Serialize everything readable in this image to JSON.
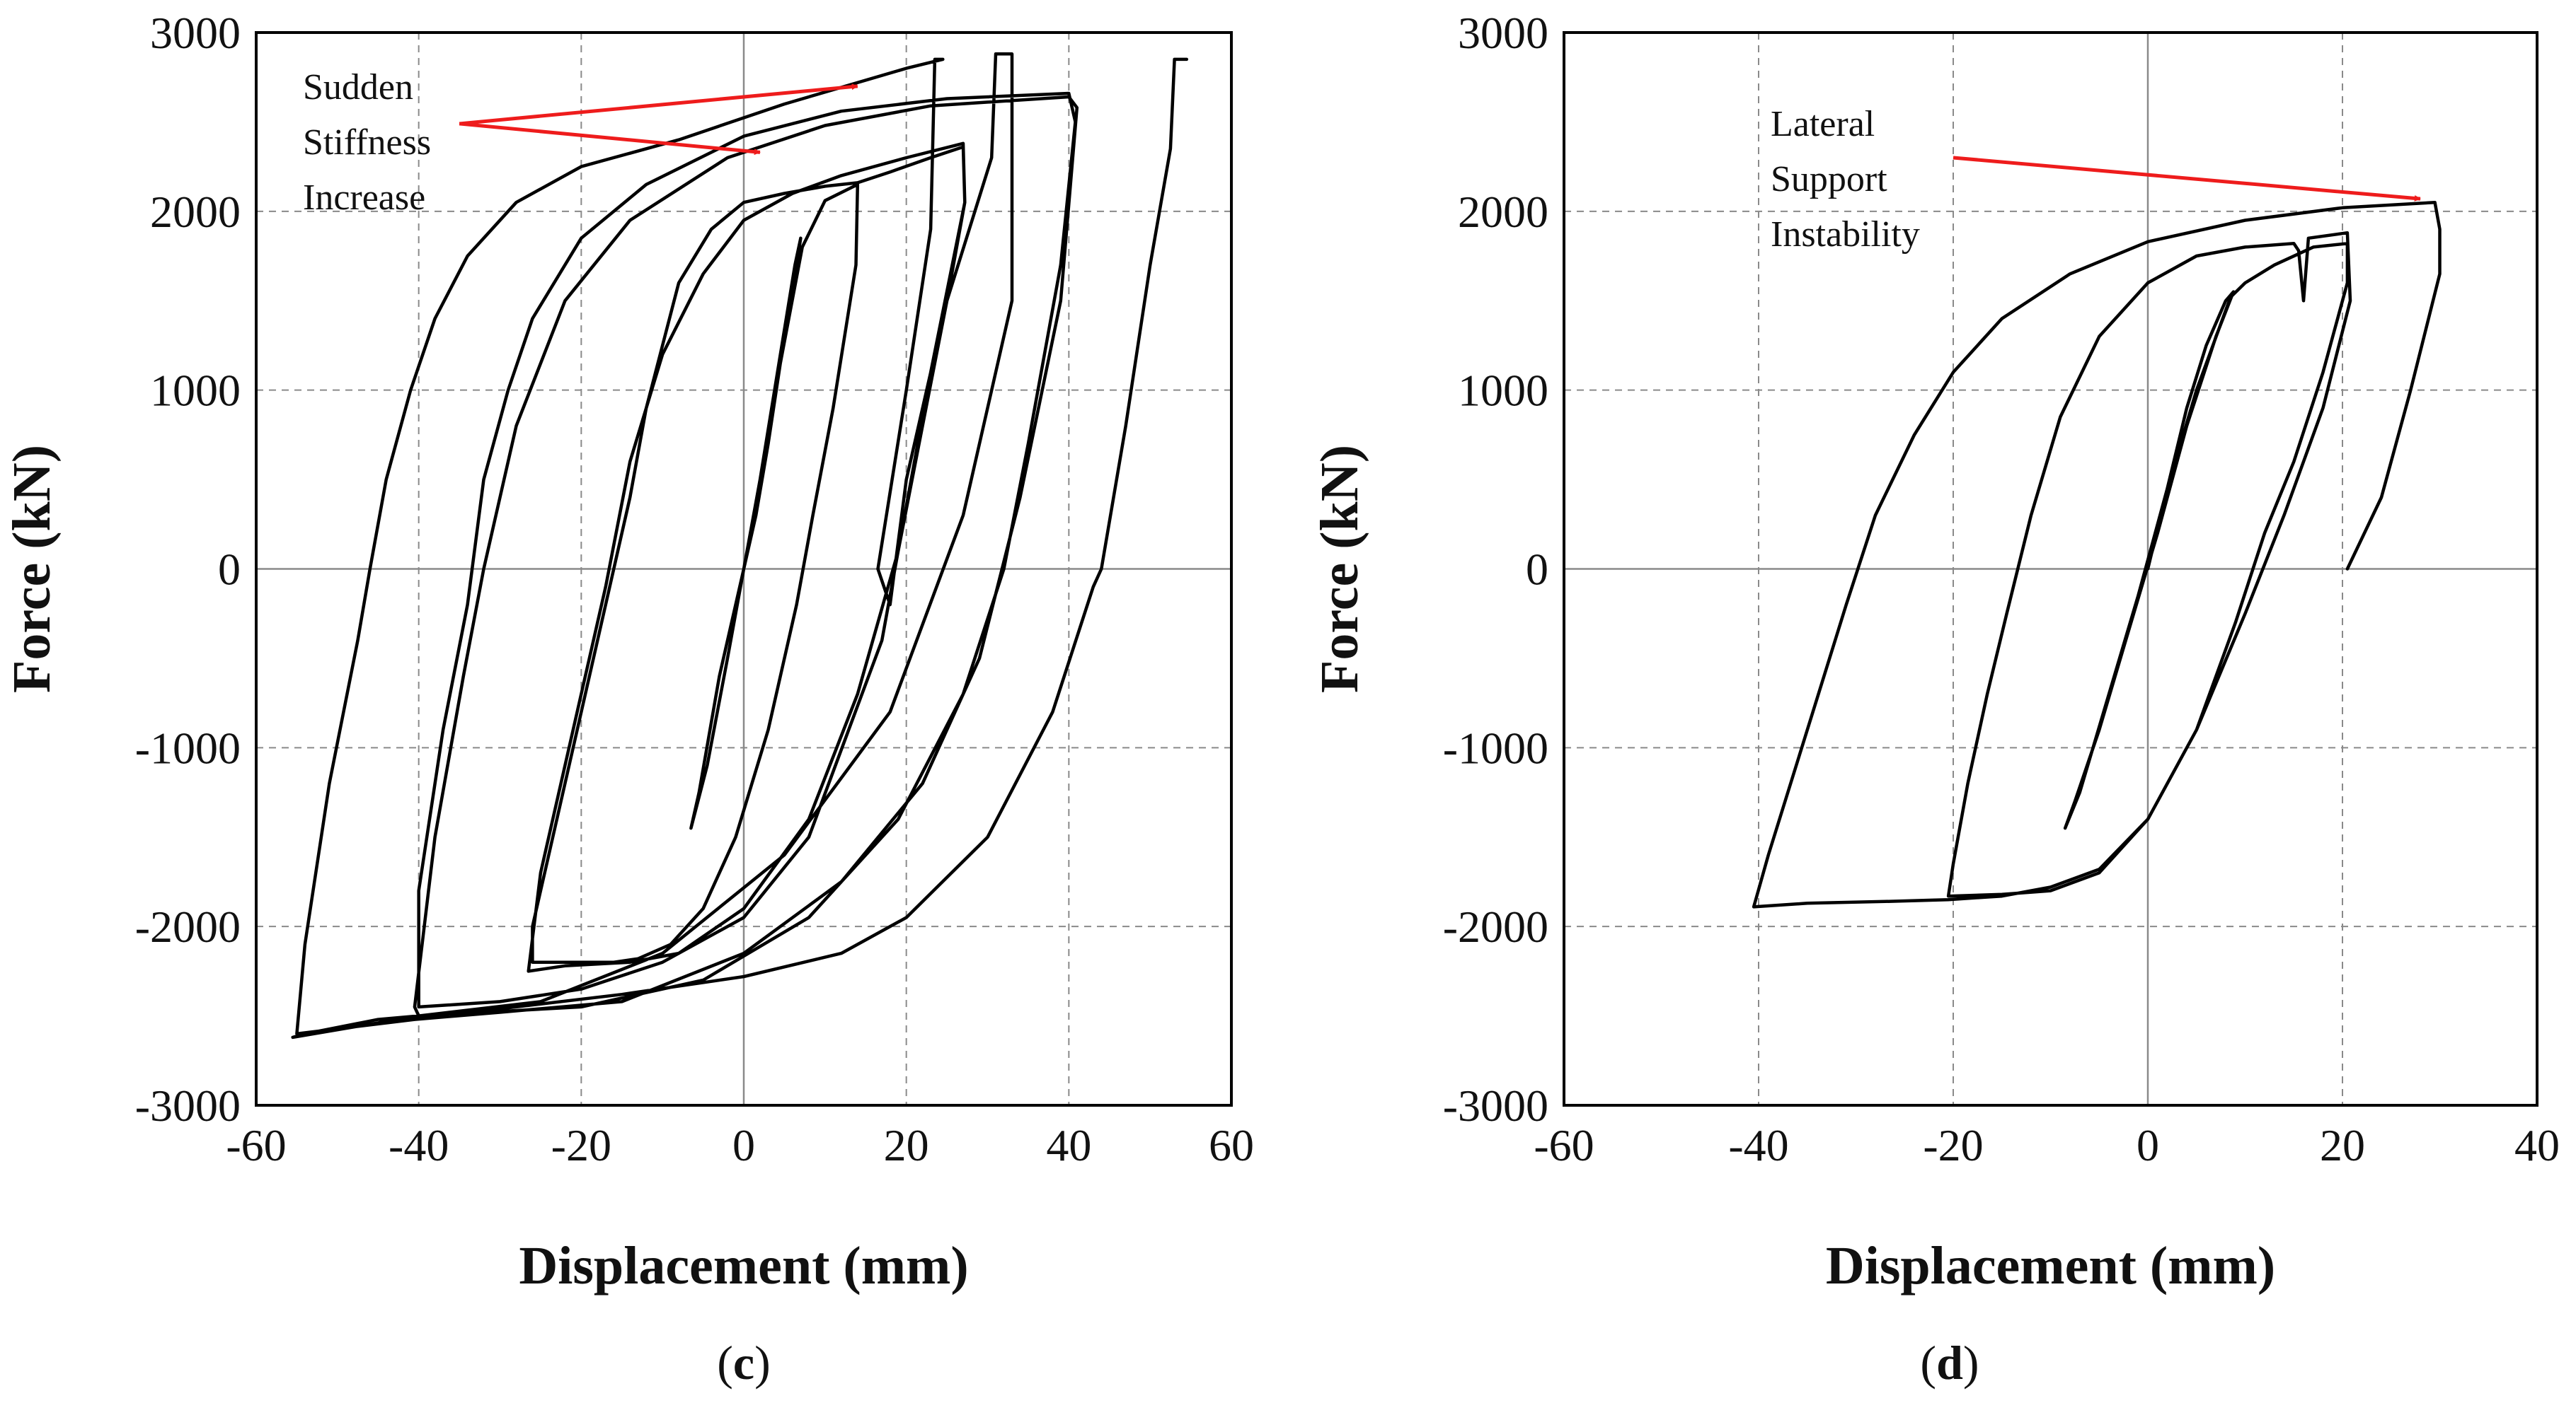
{
  "chart_data": [
    {
      "id": "c",
      "type": "line",
      "title": "",
      "sublabel": {
        "open": "(",
        "letter": "c",
        "close": ")"
      },
      "xlabel": "Displacement (mm)",
      "ylabel": "Force (kN)",
      "xlim": [
        -60,
        60
      ],
      "ylim": [
        -3000,
        3000
      ],
      "xticks": [
        -60,
        -40,
        -20,
        0,
        20,
        40,
        60
      ],
      "yticks": [
        -3000,
        -2000,
        -1000,
        0,
        1000,
        2000,
        3000
      ],
      "grid": true,
      "annotations": [
        {
          "lines": [
            "Sudden",
            "Stiffness",
            "Increase"
          ],
          "at": [
            -60,
            2800
          ],
          "arrows": [
            {
              "from": [
                -35,
                2490
              ],
              "to": [
                14,
                2700
              ]
            },
            {
              "from": [
                -35,
                2490
              ],
              "to": [
                2,
                2330
              ]
            }
          ]
        }
      ],
      "series": [
        {
          "name": "hysteresis",
          "points": [
            [
              0,
              0
            ],
            [
              1.5,
              300
            ],
            [
              3,
              700
            ],
            [
              4.5,
              1150
            ],
            [
              6,
              1550
            ],
            [
              7,
              1850
            ],
            [
              6.3,
              1700
            ],
            [
              4.5,
              1200
            ],
            [
              2,
              500
            ],
            [
              0,
              0
            ],
            [
              -2,
              -500
            ],
            [
              -4.5,
              -1100
            ],
            [
              -6.5,
              -1450
            ],
            [
              -5.5,
              -1250
            ],
            [
              -3,
              -600
            ],
            [
              0,
              0
            ],
            [
              2,
              450
            ],
            [
              4.5,
              1150
            ],
            [
              7.2,
              1800
            ],
            [
              10,
              2060
            ],
            [
              14,
              2150
            ],
            [
              13.8,
              1700
            ],
            [
              11,
              900
            ],
            [
              8.5,
              300
            ],
            [
              6.5,
              -200
            ],
            [
              3,
              -900
            ],
            [
              -1,
              -1500
            ],
            [
              -5,
              -1900
            ],
            [
              -9,
              -2100
            ],
            [
              -13,
              -2180
            ],
            [
              -16,
              -2200
            ],
            [
              -26,
              -2200
            ],
            [
              -26,
              -2000
            ],
            [
              -21,
              -1000
            ],
            [
              -17,
              -200
            ],
            [
              -14,
              400
            ],
            [
              -12,
              900
            ],
            [
              -8,
              1600
            ],
            [
              -4,
              1900
            ],
            [
              0,
              2050
            ],
            [
              5,
              2100
            ],
            [
              10,
              2140
            ],
            [
              14,
              2160
            ],
            [
              18,
              2220
            ],
            [
              23,
              2300
            ],
            [
              27,
              2360
            ],
            [
              27.2,
              2050
            ],
            [
              25,
              1500
            ],
            [
              22,
              800
            ],
            [
              19,
              100
            ],
            [
              14,
              -700
            ],
            [
              8,
              -1400
            ],
            [
              0,
              -1900
            ],
            [
              -8,
              -2150
            ],
            [
              -14,
              -2200
            ],
            [
              -22,
              -2220
            ],
            [
              -26.5,
              -2250
            ],
            [
              -25,
              -1700
            ],
            [
              -20,
              -700
            ],
            [
              -17,
              -100
            ],
            [
              -14,
              600
            ],
            [
              -10,
              1200
            ],
            [
              -5,
              1650
            ],
            [
              0,
              1950
            ],
            [
              6,
              2100
            ],
            [
              12,
              2200
            ],
            [
              20,
              2300
            ],
            [
              27,
              2380
            ],
            [
              27.2,
              2050
            ],
            [
              23,
              1100
            ],
            [
              17,
              -400
            ],
            [
              8,
              -1500
            ],
            [
              0,
              -1950
            ],
            [
              -10,
              -2200
            ],
            [
              -20,
              -2350
            ],
            [
              -30,
              -2420
            ],
            [
              -40,
              -2450
            ],
            [
              -40,
              -1800
            ],
            [
              -37,
              -900
            ],
            [
              -34,
              -200
            ],
            [
              -32,
              500
            ],
            [
              -29,
              1000
            ],
            [
              -26,
              1400
            ],
            [
              -20,
              1850
            ],
            [
              -12,
              2150
            ],
            [
              0,
              2420
            ],
            [
              12,
              2560
            ],
            [
              25,
              2630
            ],
            [
              40,
              2660
            ],
            [
              40.8,
              2500
            ],
            [
              39,
              1700
            ],
            [
              35,
              700
            ],
            [
              32,
              0
            ],
            [
              27,
              -700
            ],
            [
              19,
              -1400
            ],
            [
              8,
              -1950
            ],
            [
              -5,
              -2300
            ],
            [
              -20,
              -2450
            ],
            [
              -40,
              -2500
            ],
            [
              -40.5,
              -2450
            ],
            [
              -38,
              -1500
            ],
            [
              -34.5,
              -600
            ],
            [
              -32,
              0
            ],
            [
              -28,
              800
            ],
            [
              -22,
              1500
            ],
            [
              -14,
              1950
            ],
            [
              -2,
              2300
            ],
            [
              10,
              2480
            ],
            [
              23,
              2590
            ],
            [
              40,
              2640
            ],
            [
              41,
              2580
            ],
            [
              39,
              1500
            ],
            [
              34,
              400
            ],
            [
              29,
              -500
            ],
            [
              22,
              -1200
            ],
            [
              12,
              -1750
            ],
            [
              0,
              -2150
            ],
            [
              -15,
              -2420
            ],
            [
              -30,
              -2480
            ],
            [
              -40.5,
              -2520
            ],
            [
              -40.5,
              -2520
            ],
            [
              -55,
              -2600
            ],
            [
              -54,
              -2100
            ],
            [
              -51,
              -1200
            ],
            [
              -47.5,
              -400
            ],
            [
              -46,
              0
            ],
            [
              -44,
              500
            ],
            [
              -41,
              1000
            ],
            [
              -38,
              1400
            ],
            [
              -34,
              1750
            ],
            [
              -28,
              2050
            ],
            [
              -20,
              2250
            ],
            [
              -8,
              2400
            ],
            [
              5,
              2600
            ],
            [
              20,
              2800
            ],
            [
              24.5,
              2850
            ],
            [
              23.5,
              2850
            ],
            [
              23,
              1900
            ],
            [
              20,
              1000
            ],
            [
              16.5,
              0
            ],
            [
              18,
              -200
            ],
            [
              20,
              500
            ],
            [
              25,
              1500
            ],
            [
              30.5,
              2300
            ],
            [
              31,
              2880
            ],
            [
              33,
              2880
            ],
            [
              33,
              1500
            ],
            [
              27,
              300
            ],
            [
              18,
              -800
            ],
            [
              5,
              -1600
            ],
            [
              -10,
              -2150
            ],
            [
              -25,
              -2420
            ],
            [
              -40,
              -2500
            ],
            [
              -55.5,
              -2620
            ],
            [
              -54,
              -2600
            ],
            [
              -45,
              -2520
            ],
            [
              -30,
              -2460
            ],
            [
              -15,
              -2380
            ],
            [
              0,
              -2280
            ],
            [
              12,
              -2150
            ],
            [
              20,
              -1950
            ],
            [
              30,
              -1500
            ],
            [
              38,
              -800
            ],
            [
              43,
              -100
            ],
            [
              44,
              0
            ],
            [
              47,
              800
            ],
            [
              50,
              1700
            ],
            [
              52.5,
              2350
            ],
            [
              53,
              2850
            ],
            [
              54.5,
              2850
            ]
          ]
        }
      ]
    },
    {
      "id": "d",
      "type": "line",
      "title": "",
      "sublabel": {
        "open": "(",
        "letter": "d",
        "close": ")"
      },
      "xlabel": "Displacement (mm)",
      "ylabel": "Force (kN)",
      "xlim": [
        -60,
        40
      ],
      "ylim": [
        -3000,
        3000
      ],
      "xticks": [
        -60,
        -40,
        -20,
        0,
        20,
        40
      ],
      "yticks": [
        -3000,
        -2000,
        -1000,
        0,
        1000,
        2000,
        3000
      ],
      "grid": true,
      "annotations": [
        {
          "lines": [
            "Lateral",
            "Support",
            "Instability"
          ],
          "at": [
            -40,
            2450
          ],
          "arrows": [
            {
              "from": [
                -20,
                2300
              ],
              "to": [
                28,
                2070
              ]
            }
          ]
        }
      ],
      "series": [
        {
          "name": "hysteresis",
          "points": [
            [
              0,
              0
            ],
            [
              2,
              450
            ],
            [
              4,
              900
            ],
            [
              6,
              1250
            ],
            [
              8,
              1500
            ],
            [
              8.8,
              1550
            ],
            [
              7,
              1300
            ],
            [
              4,
              800
            ],
            [
              1,
              200
            ],
            [
              -2,
              -350
            ],
            [
              -5,
              -900
            ],
            [
              -7.5,
              -1300
            ],
            [
              -8.5,
              -1450
            ],
            [
              -7,
              -1250
            ],
            [
              -4,
              -700
            ],
            [
              -1,
              -150
            ],
            [
              2,
              450
            ],
            [
              5,
              1000
            ],
            [
              8.5,
              1520
            ],
            [
              10,
              1600
            ],
            [
              13,
              1700
            ],
            [
              17,
              1800
            ],
            [
              20.5,
              1820
            ],
            [
              20.5,
              1600
            ],
            [
              18,
              1100
            ],
            [
              15,
              600
            ],
            [
              12,
              200
            ],
            [
              9,
              -300
            ],
            [
              5,
              -900
            ],
            [
              0,
              -1400
            ],
            [
              -5,
              -1700
            ],
            [
              -10,
              -1800
            ],
            [
              -15,
              -1820
            ],
            [
              -20.5,
              -1830
            ],
            [
              -20,
              -1650
            ],
            [
              -18.5,
              -1200
            ],
            [
              -16.5,
              -700
            ],
            [
              -14.5,
              -250
            ],
            [
              -12,
              300
            ],
            [
              -9,
              850
            ],
            [
              -5,
              1300
            ],
            [
              0,
              1600
            ],
            [
              5,
              1750
            ],
            [
              10,
              1800
            ],
            [
              15,
              1820
            ],
            [
              15.5,
              1780
            ],
            [
              16,
              1500
            ],
            [
              16.5,
              1850
            ],
            [
              20.5,
              1880
            ],
            [
              20.8,
              1500
            ],
            [
              18,
              900
            ],
            [
              14,
              300
            ],
            [
              10,
              -250
            ],
            [
              5,
              -900
            ],
            [
              0,
              -1400
            ],
            [
              -5,
              -1680
            ],
            [
              -10,
              -1780
            ],
            [
              -15,
              -1830
            ],
            [
              -20.5,
              -1850
            ],
            [
              -20.5,
              -1850
            ],
            [
              -27,
              -1860
            ],
            [
              -35,
              -1870
            ],
            [
              -40.5,
              -1890
            ],
            [
              -39,
              -1600
            ],
            [
              -35,
              -900
            ],
            [
              -31,
              -200
            ],
            [
              -28,
              300
            ],
            [
              -24,
              750
            ],
            [
              -20,
              1100
            ],
            [
              -15,
              1400
            ],
            [
              -8,
              1650
            ],
            [
              0,
              1830
            ],
            [
              10,
              1950
            ],
            [
              20,
              2020
            ],
            [
              29.5,
              2050
            ],
            [
              30,
              1900
            ],
            [
              30,
              1650
            ],
            [
              27,
              1000
            ],
            [
              24,
              400
            ],
            [
              20.5,
              0
            ]
          ]
        }
      ]
    }
  ]
}
